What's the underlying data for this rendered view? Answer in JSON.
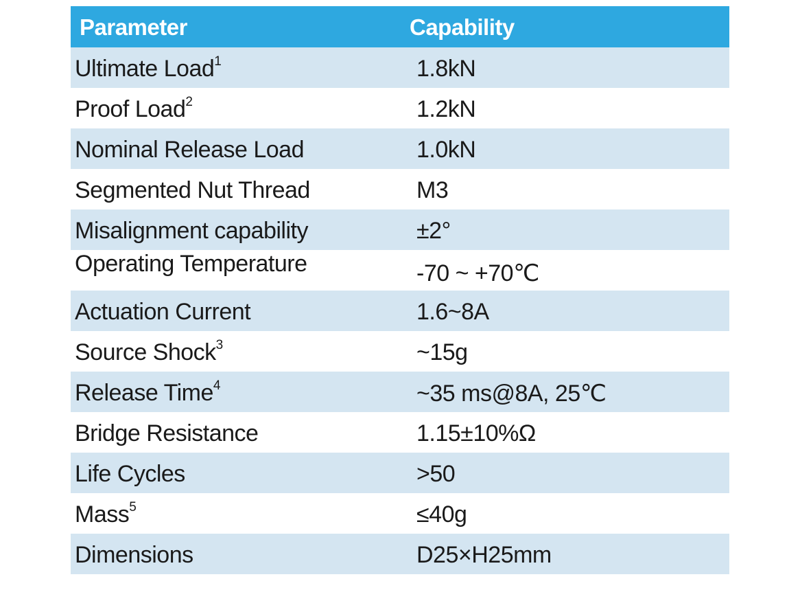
{
  "table": {
    "headers": {
      "parameter": "Parameter",
      "capability": "Capability"
    },
    "rows": [
      {
        "parameter": "Ultimate Load",
        "note": "1",
        "capability": "1.8kN"
      },
      {
        "parameter": "Proof Load",
        "note": "2",
        "capability": "1.2kN"
      },
      {
        "parameter": "Nominal Release Load",
        "note": "",
        "capability": "1.0kN"
      },
      {
        "parameter": "Segmented Nut Thread",
        "note": "",
        "capability": "M3"
      },
      {
        "parameter": "Misalignment capability",
        "note": "",
        "capability": "±2°"
      },
      {
        "parameter": "Operating Temperature",
        "note": "",
        "capability": "-70 ~ +70℃"
      },
      {
        "parameter": "Actuation Current",
        "note": "",
        "capability": "1.6~8A"
      },
      {
        "parameter": "Source Shock",
        "note": "3",
        "capability": "~15g"
      },
      {
        "parameter": "Release Time",
        "note": "4",
        "capability": "~35 ms@8A, 25℃"
      },
      {
        "parameter": "Bridge Resistance",
        "note": "",
        "capability": "1.15±10%Ω"
      },
      {
        "parameter": "Life Cycles",
        "note": "",
        "capability": ">50"
      },
      {
        "parameter": "Mass",
        "note": "5",
        "capability": "≤40g"
      },
      {
        "parameter": "Dimensions",
        "note": "",
        "capability": "D25×H25mm"
      }
    ]
  },
  "colors": {
    "header_background": "#2ea8e0",
    "header_text": "#ffffff",
    "shaded_row": "#d4e5f1",
    "plain_row": "#ffffff",
    "body_text": "#1a1a1a"
  }
}
